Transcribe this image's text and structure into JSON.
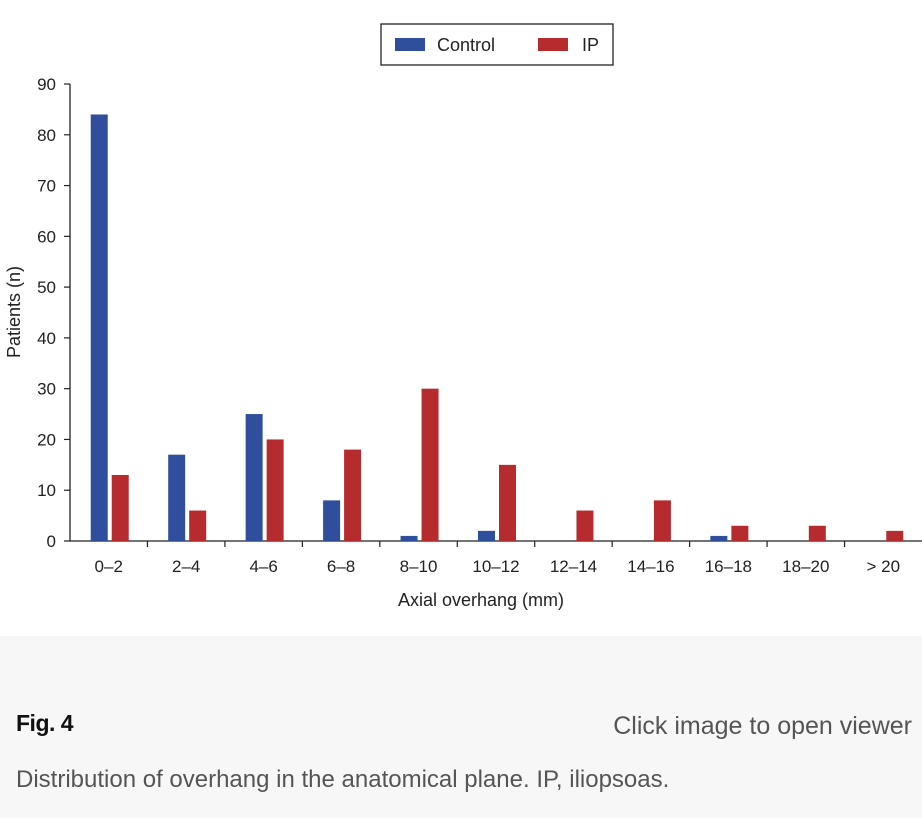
{
  "chart_data": {
    "type": "bar",
    "title": "",
    "xlabel": "Axial overhang (mm)",
    "ylabel": "Patients (n)",
    "ylim": [
      0,
      90
    ],
    "yticks": [
      0,
      10,
      20,
      30,
      40,
      50,
      60,
      70,
      80,
      90
    ],
    "categories": [
      "0–2",
      "2–4",
      "4–6",
      "6–8",
      "8–10",
      "10–12",
      "12–14",
      "14–16",
      "16–18",
      "18–20",
      "> 20"
    ],
    "series": [
      {
        "name": "Control",
        "color": "#2f4f9c",
        "values": [
          84,
          17,
          25,
          8,
          1,
          2,
          0,
          0,
          1,
          0,
          0
        ]
      },
      {
        "name": "IP",
        "color": "#b52b2e",
        "values": [
          13,
          6,
          20,
          18,
          30,
          15,
          6,
          8,
          3,
          3,
          2
        ]
      }
    ],
    "legend": "top-center",
    "grid": false
  },
  "caption": {
    "figure_label": "Fig. 4",
    "open_viewer_text": "Click image to open viewer",
    "text": "Distribution of overhang in the anatomical plane. IP, iliopsoas."
  }
}
